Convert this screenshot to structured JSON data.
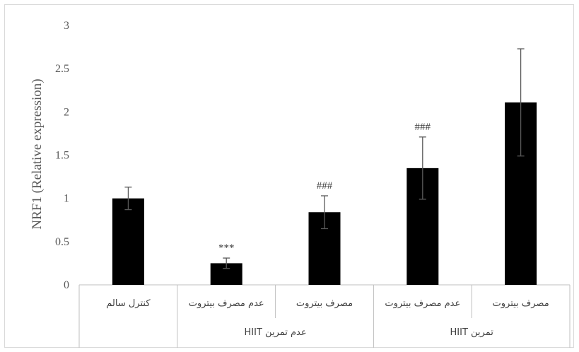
{
  "chart_data": {
    "type": "bar",
    "ylabel": "NRF1 (Relative expression)",
    "ylim": [
      0,
      3
    ],
    "yticks": [
      "0",
      "0.5",
      "1",
      "1.5",
      "2",
      "2.5",
      "3"
    ],
    "categories": [
      "کنترل سالم",
      "عدم مصرف بیتروت",
      "مصرف بیتروت",
      "عدم مصرف بیتروت",
      "مصرف بیتروت"
    ],
    "groups": [
      {
        "label": "عدم تمرین HIIT",
        "span": [
          1,
          2
        ]
      },
      {
        "label": "تمرین HIIT",
        "span": [
          3,
          4
        ]
      }
    ],
    "values": [
      1.0,
      0.25,
      0.84,
      1.35,
      2.11
    ],
    "errors": [
      0.13,
      0.06,
      0.19,
      0.36,
      0.62
    ],
    "annotations": [
      "",
      "***",
      "###",
      "###",
      ""
    ],
    "bar_color": "#000000",
    "grid": false
  }
}
